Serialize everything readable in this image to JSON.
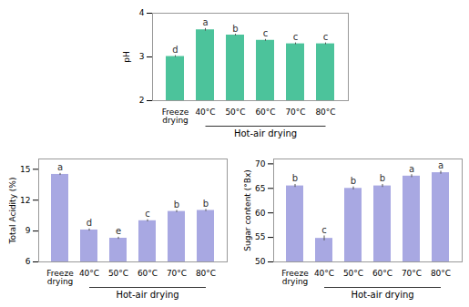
{
  "chart_data": [
    {
      "type": "bar",
      "categories": [
        "Freeze\ndrying",
        "40°C",
        "50°C",
        "60°C",
        "70°C",
        "80°C"
      ],
      "values": [
        3.01,
        3.62,
        3.5,
        3.38,
        3.3,
        3.3
      ],
      "errors": [
        0.02,
        0.03,
        0.02,
        0.02,
        0.02,
        0.02
      ],
      "letters": [
        "d",
        "a",
        "b",
        "c",
        "c",
        "c"
      ],
      "ylabel": "pH",
      "ylim": [
        2,
        4
      ],
      "yticks": [
        2,
        3,
        4
      ],
      "color": "#2db88a",
      "annotations": [
        {
          "text": "Hot-air drying",
          "from": "40°C",
          "to": "80°C"
        }
      ]
    },
    {
      "type": "bar",
      "categories": [
        "Freeze\ndrying",
        "40°C",
        "50°C",
        "60°C",
        "70°C",
        "80°C"
      ],
      "values": [
        14.5,
        9.1,
        8.3,
        10.0,
        10.9,
        11.0
      ],
      "errors": [
        0.1,
        0.1,
        0.1,
        0.1,
        0.1,
        0.1
      ],
      "letters": [
        "a",
        "d",
        "e",
        "c",
        "b",
        "b"
      ],
      "ylabel": "Total Acidity (%)",
      "ylim": [
        6,
        16
      ],
      "yticks": [
        6,
        9,
        12,
        15
      ],
      "color": "#9999dd",
      "annotations": [
        {
          "text": "Hot-air drying",
          "from": "40°C",
          "to": "80°C"
        }
      ]
    },
    {
      "type": "bar",
      "categories": [
        "Freeze\ndrying",
        "40°C",
        "50°C",
        "60°C",
        "70°C",
        "80°C"
      ],
      "values": [
        65.5,
        54.8,
        65.0,
        65.5,
        67.5,
        68.2
      ],
      "errors": [
        0.3,
        0.5,
        0.3,
        0.3,
        0.3,
        0.3
      ],
      "letters": [
        "b",
        "c",
        "b",
        "b",
        "a",
        "a"
      ],
      "ylabel": "Sugar content (°Bx)",
      "ylim": [
        50,
        71
      ],
      "yticks": [
        50,
        55,
        60,
        65,
        70
      ],
      "color": "#9999dd",
      "annotations": [
        {
          "text": "Hot-air drying",
          "from": "40°C",
          "to": "80°C"
        }
      ]
    }
  ]
}
